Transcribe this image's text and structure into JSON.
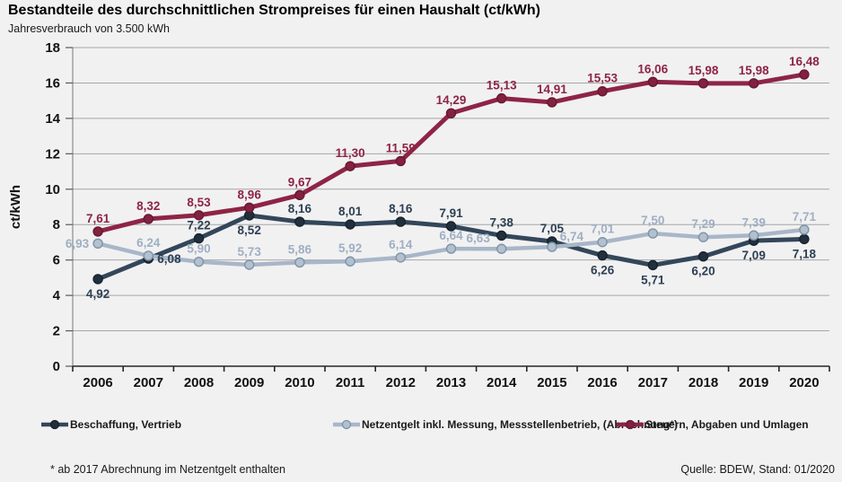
{
  "header": {
    "title": "Bestandteile des durchschnittlichen Strompreises für einen Haushalt (ct/kWh)",
    "subtitle": "Jahresverbrauch von 3.500 kWh"
  },
  "footer": {
    "footnote": "* ab 2017 Abrechnung  im Netzentgelt enthalten",
    "source": "Quelle: BDEW, Stand: 01/2020"
  },
  "chart_data": {
    "type": "line",
    "title": "Bestandteile des durchschnittlichen Strompreises für einen Haushalt (ct/kWh)",
    "subtitle": "Jahresverbrauch von 3.500 kWh",
    "xlabel": "",
    "ylabel": "ct/kWh",
    "ylim": [
      0,
      18
    ],
    "ytick_step": 2,
    "grid": true,
    "grid_color": "#A6A6A6",
    "axis_color": "#262626",
    "yaxis_line_color": "#8C8C8C",
    "decimal_separator": ",",
    "legend_position": "bottom",
    "categories": [
      "2006",
      "2007",
      "2008",
      "2009",
      "2010",
      "2011",
      "2012",
      "2013",
      "2014",
      "2015",
      "2016",
      "2017",
      "2018",
      "2019",
      "2020"
    ],
    "series": [
      {
        "name": "Beschaffung, Vertrieb",
        "color": "#33465A",
        "marker_fill": "#22303E",
        "marker_stroke": "#17212C",
        "label_color": "#2E4052",
        "line_width": 5,
        "values": [
          4.92,
          6.08,
          7.22,
          8.52,
          8.16,
          8.01,
          8.16,
          7.91,
          7.38,
          7.05,
          6.26,
          5.71,
          6.2,
          7.09,
          7.18
        ],
        "label_pos": [
          "below",
          "right",
          "above",
          "below",
          "above",
          "above",
          "above",
          "above",
          "above",
          "above",
          "below",
          "below",
          "below",
          "below",
          "below"
        ]
      },
      {
        "name": "Netzentgelt inkl. Messung, Messstellenbetrieb, (Abrechnung*)",
        "color": "#A8B6C8",
        "marker_fill": "#B3C0CE",
        "marker_stroke": "#7E93A8",
        "label_color": "#9FAFC2",
        "line_width": 4.5,
        "values": [
          6.93,
          6.24,
          5.9,
          5.73,
          5.86,
          5.92,
          6.14,
          6.64,
          6.63,
          6.74,
          7.01,
          7.5,
          7.29,
          7.39,
          7.71
        ],
        "label_pos": [
          "left",
          "above",
          "above",
          "above",
          "above",
          "above",
          "above",
          "above",
          "above-left",
          "above-right",
          "above",
          "above",
          "above",
          "above",
          "above"
        ]
      },
      {
        "name": "Steuern, Abgaben und Umlagen",
        "color": "#8E2446",
        "marker_fill": "#84213F",
        "marker_stroke": "#641932",
        "label_color": "#8E2446",
        "line_width": 5,
        "values": [
          7.61,
          8.32,
          8.53,
          8.96,
          9.67,
          11.3,
          11.59,
          14.29,
          15.13,
          14.91,
          15.53,
          16.06,
          15.98,
          15.98,
          16.48
        ],
        "label_pos": [
          "above",
          "above",
          "above",
          "above",
          "above",
          "above",
          "above",
          "above",
          "above",
          "above",
          "above",
          "above",
          "above",
          "above",
          "above"
        ]
      }
    ]
  }
}
